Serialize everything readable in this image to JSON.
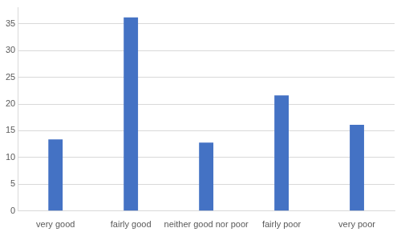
{
  "chart_data": {
    "type": "bar",
    "categories": [
      "very good",
      "fairly good",
      "neither good nor poor",
      "fairly poor",
      "very poor"
    ],
    "values": [
      13.4,
      36.2,
      12.8,
      21.6,
      16.1
    ],
    "color": "#4472c4",
    "ylim": [
      0,
      38
    ],
    "yticks": [
      0,
      5,
      10,
      15,
      20,
      25,
      30,
      35
    ],
    "grid": true
  }
}
